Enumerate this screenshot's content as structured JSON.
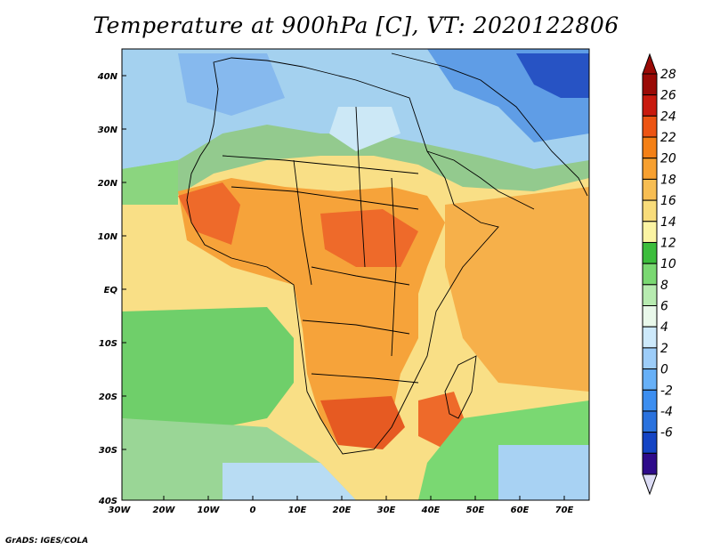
{
  "title": "Temperature at 900hPa [C], VT: 2020122806",
  "credit": "GrADS: IGES/COLA",
  "map": {
    "lon_labels": [
      "30W",
      "20W",
      "10W",
      "0",
      "10E",
      "20E",
      "30E",
      "40E",
      "50E",
      "60E",
      "70E"
    ],
    "lat_labels": [
      "40N",
      "30N",
      "20N",
      "10N",
      "EQ",
      "10S",
      "20S",
      "30S",
      "40S"
    ]
  },
  "colorbar": {
    "labels": [
      "28",
      "26",
      "24",
      "22",
      "20",
      "18",
      "16",
      "14",
      "12",
      "10",
      "8",
      "6",
      "4",
      "2",
      "0",
      "-2",
      "-4",
      "-6"
    ],
    "colors": [
      "#2e0b8a",
      "#1444c4",
      "#2a72de",
      "#3c8ef0",
      "#67b0f7",
      "#9dcdf9",
      "#cde9fb",
      "#e9f8ea",
      "#b7ebb0",
      "#7ad872",
      "#3cbd3c",
      "#fbf4a3",
      "#f8dc7a",
      "#f7bd52",
      "#f7a030",
      "#f48016",
      "#ec5413",
      "#c81a0e",
      "#9a0a06"
    ]
  }
}
